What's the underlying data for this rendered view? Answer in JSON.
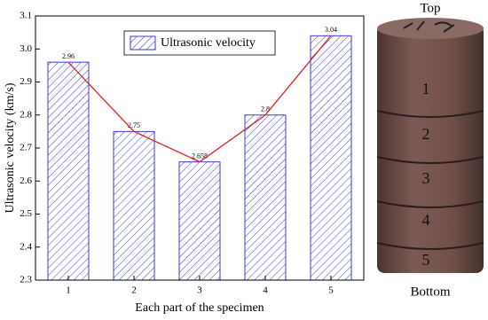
{
  "chart_data": {
    "type": "bar",
    "x_label": "Each part of the specimen",
    "y_label": "Ultrasonic velocity (km/s)",
    "categories": [
      "1",
      "2",
      "3",
      "4",
      "5"
    ],
    "series": [
      {
        "name": "Ultrasonic velocity",
        "color": "#3b3bd6",
        "values": [
          2.96,
          2.75,
          2.658,
          2.8,
          3.04
        ]
      }
    ],
    "line_color": "#e02020",
    "ylim": [
      2.3,
      3.1
    ],
    "yticks": [
      2.3,
      2.4,
      2.5,
      2.6,
      2.7,
      2.8,
      2.9,
      {
        "value": 3,
        "label": "3.0"
      },
      3.1
    ],
    "legend": "top"
  },
  "specimen": {
    "top_label": "Top",
    "parts": [
      "1",
      "2",
      "3",
      "4",
      "5"
    ],
    "bottom_label": "Bottom"
  }
}
